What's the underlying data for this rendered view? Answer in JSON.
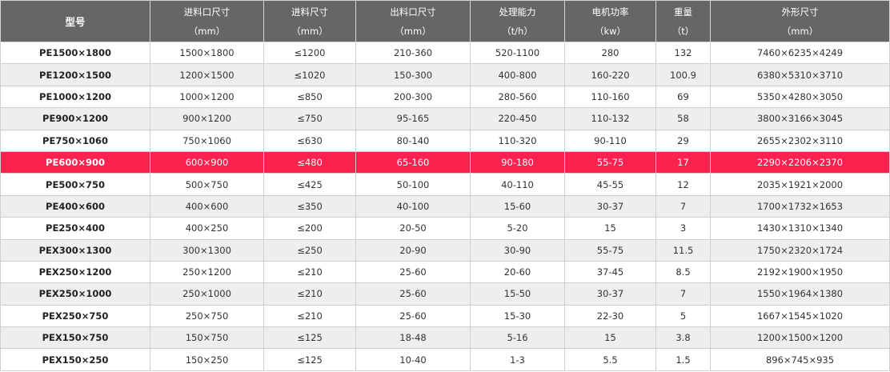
{
  "colors": {
    "header_bg": "#666666",
    "highlight_row": "#fa234f",
    "alt_row": "#eeeeee"
  },
  "headers": [
    {
      "title": "型号",
      "unit": ""
    },
    {
      "title": "进料口尺寸",
      "unit": "（mm）"
    },
    {
      "title": "进料尺寸",
      "unit": "（mm）"
    },
    {
      "title": "出料口尺寸",
      "unit": "（mm）"
    },
    {
      "title": "处理能力",
      "unit": "（t/h）"
    },
    {
      "title": "电机功率",
      "unit": "（kw）"
    },
    {
      "title": "重量",
      "unit": "（t）"
    },
    {
      "title": "外形尺寸",
      "unit": "（mm）"
    }
  ],
  "highlighted_row": 5,
  "rows": [
    [
      "PE1500×1800",
      "1500×1800",
      "≤1200",
      "210-360",
      "520-1100",
      "280",
      "132",
      "7460×6235×4249"
    ],
    [
      "PE1200×1500",
      "1200×1500",
      "≤1020",
      "150-300",
      "400-800",
      "160-220",
      "100.9",
      "6380×5310×3710"
    ],
    [
      "PE1000×1200",
      "1000×1200",
      "≤850",
      "200-300",
      "280-560",
      "110-160",
      "69",
      "5350×4280×3050"
    ],
    [
      "PE900×1200",
      "900×1200",
      "≤750",
      "95-165",
      "220-450",
      "110-132",
      "58",
      "3800×3166×3045"
    ],
    [
      "PE750×1060",
      "750×1060",
      "≤630",
      "80-140",
      "110-320",
      "90-110",
      "29",
      "2655×2302×3110"
    ],
    [
      "PE600×900",
      "600×900",
      "≤480",
      "65-160",
      "90-180",
      "55-75",
      "17",
      "2290×2206×2370"
    ],
    [
      "PE500×750",
      "500×750",
      "≤425",
      "50-100",
      "40-110",
      "45-55",
      "12",
      "2035×1921×2000"
    ],
    [
      "PE400×600",
      "400×600",
      "≤350",
      "40-100",
      "15-60",
      "30-37",
      "7",
      "1700×1732×1653"
    ],
    [
      "PE250×400",
      "400×250",
      "≤200",
      "20-50",
      "5-20",
      "15",
      "3",
      "1430×1310×1340"
    ],
    [
      "PEX300×1300",
      "300×1300",
      "≤250",
      "20-90",
      "30-90",
      "55-75",
      "11.5",
      "1750×2320×1724"
    ],
    [
      "PEX250×1200",
      "250×1200",
      "≤210",
      "25-60",
      "20-60",
      "37-45",
      "8.5",
      "2192×1900×1950"
    ],
    [
      "PEX250×1000",
      "250×1000",
      "≤210",
      "25-60",
      "15-50",
      "30-37",
      "7",
      "1550×1964×1380"
    ],
    [
      "PEX250×750",
      "250×750",
      "≤210",
      "25-60",
      "15-30",
      "22-30",
      "5",
      "1667×1545×1020"
    ],
    [
      "PEX150×750",
      "150×750",
      "≤125",
      "18-48",
      "5-16",
      "15",
      "3.8",
      "1200×1500×1200"
    ],
    [
      "PEX150×250",
      "150×250",
      "≤125",
      "10-40",
      "1-3",
      "5.5",
      "1.5",
      "896×745×935"
    ]
  ]
}
